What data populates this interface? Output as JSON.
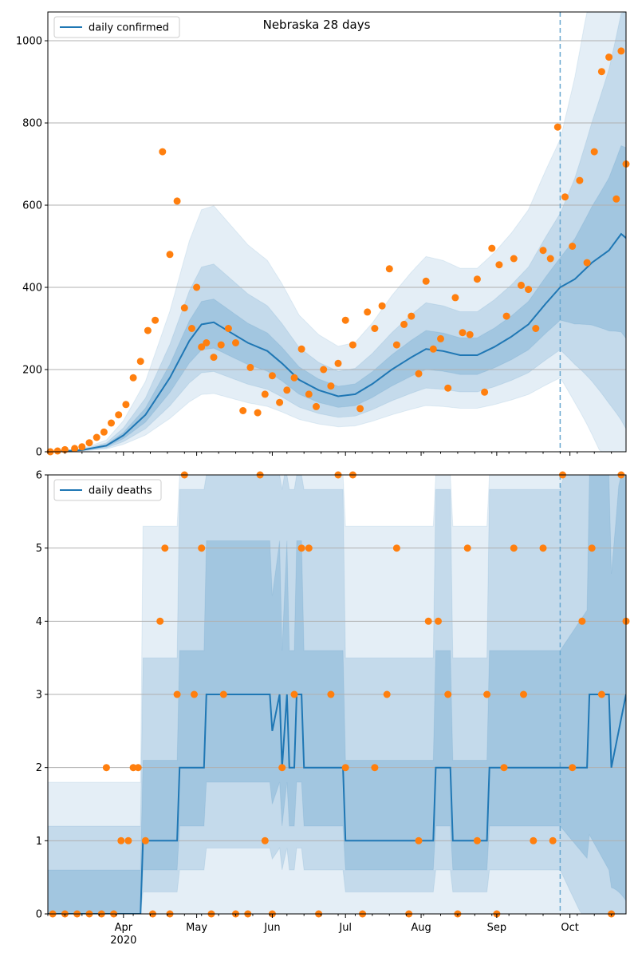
{
  "chart_data": [
    {
      "type": "line",
      "title": "Nebraska 28 days",
      "xlabel": "",
      "ylabel": "",
      "xlim": [
        "2020-03-01",
        "2020-10-24"
      ],
      "ylim": [
        0,
        1070
      ],
      "yticks": [
        0,
        200,
        400,
        600,
        800,
        1000
      ],
      "grid": "horizontal",
      "legend_placement": "top-left",
      "forecast_start": "2020-09-27",
      "series": [
        {
          "name": "daily confirmed",
          "kind": "line",
          "color": "#1f77b4",
          "x": [
            "2020-03-01",
            "2020-03-15",
            "2020-03-25",
            "2020-04-01",
            "2020-04-10",
            "2020-04-20",
            "2020-04-28",
            "2020-05-03",
            "2020-05-08",
            "2020-05-15",
            "2020-05-22",
            "2020-05-30",
            "2020-06-05",
            "2020-06-12",
            "2020-06-20",
            "2020-06-28",
            "2020-07-05",
            "2020-07-12",
            "2020-07-20",
            "2020-07-28",
            "2020-08-03",
            "2020-08-10",
            "2020-08-17",
            "2020-08-24",
            "2020-08-31",
            "2020-09-07",
            "2020-09-14",
            "2020-09-21",
            "2020-09-27",
            "2020-10-03",
            "2020-10-10",
            "2020-10-17",
            "2020-10-22",
            "2020-10-24"
          ],
          "y": [
            0,
            4,
            15,
            40,
            90,
            180,
            270,
            310,
            315,
            290,
            265,
            245,
            215,
            175,
            150,
            135,
            140,
            165,
            200,
            230,
            250,
            245,
            235,
            235,
            255,
            280,
            310,
            360,
            400,
            420,
            460,
            490,
            530,
            520
          ]
        },
        {
          "name": "",
          "kind": "scatter",
          "color": "#ff7f0e",
          "x": [
            "2020-03-02",
            "2020-03-05",
            "2020-03-08",
            "2020-03-12",
            "2020-03-15",
            "2020-03-18",
            "2020-03-21",
            "2020-03-24",
            "2020-03-27",
            "2020-03-30",
            "2020-04-02",
            "2020-04-05",
            "2020-04-08",
            "2020-04-11",
            "2020-04-14",
            "2020-04-17",
            "2020-04-20",
            "2020-04-23",
            "2020-04-26",
            "2020-04-29",
            "2020-05-01",
            "2020-05-03",
            "2020-05-05",
            "2020-05-08",
            "2020-05-11",
            "2020-05-14",
            "2020-05-17",
            "2020-05-20",
            "2020-05-23",
            "2020-05-26",
            "2020-05-29",
            "2020-06-01",
            "2020-06-04",
            "2020-06-07",
            "2020-06-10",
            "2020-06-13",
            "2020-06-16",
            "2020-06-19",
            "2020-06-22",
            "2020-06-25",
            "2020-06-28",
            "2020-07-01",
            "2020-07-04",
            "2020-07-07",
            "2020-07-10",
            "2020-07-13",
            "2020-07-16",
            "2020-07-19",
            "2020-07-22",
            "2020-07-25",
            "2020-07-28",
            "2020-07-31",
            "2020-08-03",
            "2020-08-06",
            "2020-08-09",
            "2020-08-12",
            "2020-08-15",
            "2020-08-18",
            "2020-08-21",
            "2020-08-24",
            "2020-08-27",
            "2020-08-30",
            "2020-09-02",
            "2020-09-05",
            "2020-09-08",
            "2020-09-11",
            "2020-09-14",
            "2020-09-17",
            "2020-09-20",
            "2020-09-23",
            "2020-09-26",
            "2020-09-29",
            "2020-10-02",
            "2020-10-05",
            "2020-10-08",
            "2020-10-11",
            "2020-10-14",
            "2020-10-17",
            "2020-10-20",
            "2020-10-22",
            "2020-10-24"
          ],
          "y": [
            0,
            2,
            5,
            8,
            12,
            22,
            35,
            48,
            70,
            90,
            115,
            180,
            220,
            295,
            320,
            730,
            480,
            610,
            350,
            300,
            400,
            255,
            265,
            230,
            260,
            300,
            265,
            100,
            205,
            95,
            140,
            185,
            120,
            150,
            180,
            250,
            140,
            110,
            200,
            160,
            215,
            320,
            260,
            105,
            340,
            300,
            355,
            445,
            260,
            310,
            330,
            190,
            415,
            250,
            275,
            155,
            375,
            290,
            285,
            420,
            145,
            495,
            455,
            330,
            470,
            405,
            395,
            300,
            490,
            470,
            790,
            620,
            500,
            660,
            460,
            730,
            925,
            960,
            615,
            975,
            700
          ]
        }
      ],
      "bands": "shaded uncertainty intervals around the median"
    },
    {
      "type": "line",
      "title": "",
      "xlabel": "",
      "ylabel": "",
      "xlim": [
        "2020-03-01",
        "2020-10-24"
      ],
      "ylim": [
        0,
        6
      ],
      "yticks": [
        0,
        1,
        2,
        3,
        4,
        5,
        6
      ],
      "xticks": [
        {
          "date": "2020-04-01",
          "label": "Apr",
          "sublabel": "2020"
        },
        {
          "date": "2020-05-01",
          "label": "May"
        },
        {
          "date": "2020-06-01",
          "label": "Jun"
        },
        {
          "date": "2020-07-01",
          "label": "Jul"
        },
        {
          "date": "2020-08-01",
          "label": "Aug"
        },
        {
          "date": "2020-09-01",
          "label": "Sep"
        },
        {
          "date": "2020-10-01",
          "label": "Oct"
        }
      ],
      "grid": "horizontal",
      "legend_placement": "top-left",
      "forecast_start": "2020-09-27",
      "series": [
        {
          "name": "daily deaths",
          "kind": "line",
          "color": "#1f77b4",
          "x": [
            "2020-03-01",
            "2020-04-08",
            "2020-04-09",
            "2020-04-23",
            "2020-04-24",
            "2020-05-04",
            "2020-05-05",
            "2020-05-31",
            "2020-06-01",
            "2020-06-04",
            "2020-06-05",
            "2020-06-07",
            "2020-06-08",
            "2020-06-10",
            "2020-06-11",
            "2020-06-13",
            "2020-06-14",
            "2020-06-30",
            "2020-07-01",
            "2020-07-25",
            "2020-07-26",
            "2020-08-06",
            "2020-08-07",
            "2020-08-13",
            "2020-08-14",
            "2020-08-28",
            "2020-08-29",
            "2020-09-27",
            "2020-10-02",
            "2020-10-08",
            "2020-10-09",
            "2020-10-17",
            "2020-10-18",
            "2020-10-24"
          ],
          "y": [
            0,
            0,
            1,
            1,
            2,
            2,
            3,
            3,
            2.5,
            3,
            2,
            3,
            2,
            2,
            3,
            3,
            2,
            2,
            1,
            1,
            1,
            1,
            2,
            2,
            1,
            1,
            2,
            2,
            2,
            2,
            3,
            3,
            2,
            3
          ]
        },
        {
          "name": "",
          "kind": "scatter",
          "color": "#ff7f0e",
          "x": [
            "2020-03-03",
            "2020-03-08",
            "2020-03-13",
            "2020-03-18",
            "2020-03-23",
            "2020-03-25",
            "2020-03-28",
            "2020-03-31",
            "2020-04-03",
            "2020-04-05",
            "2020-04-07",
            "2020-04-10",
            "2020-04-13",
            "2020-04-16",
            "2020-04-18",
            "2020-04-20",
            "2020-04-23",
            "2020-04-26",
            "2020-04-30",
            "2020-05-03",
            "2020-05-07",
            "2020-05-12",
            "2020-05-17",
            "2020-05-22",
            "2020-05-27",
            "2020-05-29",
            "2020-06-01",
            "2020-06-05",
            "2020-06-10",
            "2020-06-13",
            "2020-06-16",
            "2020-06-20",
            "2020-06-25",
            "2020-06-28",
            "2020-07-01",
            "2020-07-04",
            "2020-07-08",
            "2020-07-13",
            "2020-07-18",
            "2020-07-22",
            "2020-07-27",
            "2020-07-31",
            "2020-08-04",
            "2020-08-08",
            "2020-08-12",
            "2020-08-16",
            "2020-08-20",
            "2020-08-24",
            "2020-08-28",
            "2020-09-01",
            "2020-09-04",
            "2020-09-08",
            "2020-09-12",
            "2020-09-16",
            "2020-09-20",
            "2020-09-24",
            "2020-09-28",
            "2020-10-02",
            "2020-10-06",
            "2020-10-10",
            "2020-10-14",
            "2020-10-18",
            "2020-10-22",
            "2020-10-24"
          ],
          "y": [
            0,
            0,
            0,
            0,
            0,
            2,
            0,
            1,
            1,
            2,
            2,
            1,
            0,
            4,
            5,
            0,
            3,
            6,
            3,
            5,
            0,
            3,
            0,
            0,
            6,
            1,
            0,
            2,
            3,
            5,
            5,
            0,
            3,
            6,
            2,
            6,
            0,
            2,
            3,
            5,
            0,
            1,
            4,
            4,
            3,
            0,
            5,
            1,
            3,
            0,
            2,
            5,
            3,
            1,
            5,
            1,
            6,
            2,
            4,
            5,
            3,
            0,
            6,
            4
          ]
        }
      ],
      "bands": "shaded uncertainty intervals around the median"
    }
  ]
}
